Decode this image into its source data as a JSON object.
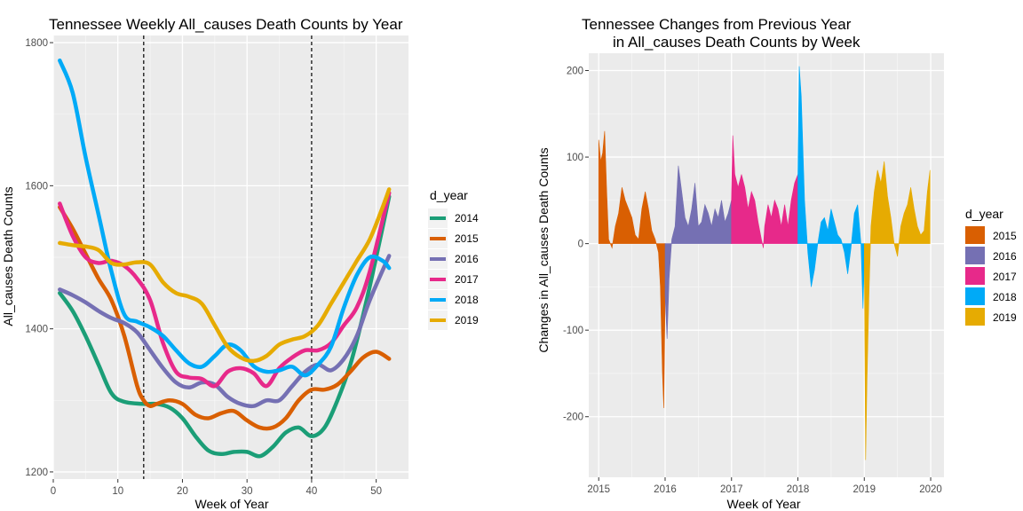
{
  "chart_data": [
    {
      "type": "line",
      "title": "Tennessee Weekly All_causes Death Counts by Year",
      "xlabel": "Week of Year",
      "ylabel": "All_causes Death Counts",
      "xlim": [
        0,
        55
      ],
      "ylim": [
        1190,
        1810
      ],
      "x_ticks": [
        0,
        10,
        20,
        30,
        40,
        50
      ],
      "y_ticks": [
        1200,
        1400,
        1600,
        1800
      ],
      "vlines": [
        14,
        40
      ],
      "grid": true,
      "legend": {
        "title": "d_year",
        "placement": "right"
      },
      "series": [
        {
          "name": "2014",
          "color": "#1B9E77",
          "x": [
            1,
            3,
            5,
            7,
            9,
            11,
            14,
            16,
            18,
            20,
            22,
            24,
            26,
            28,
            30,
            32,
            34,
            36,
            38,
            40,
            42,
            44,
            46,
            48,
            50,
            52
          ],
          "y": [
            1450,
            1425,
            1390,
            1350,
            1310,
            1298,
            1295,
            1295,
            1290,
            1275,
            1250,
            1230,
            1225,
            1228,
            1228,
            1222,
            1235,
            1255,
            1262,
            1250,
            1262,
            1300,
            1350,
            1420,
            1500,
            1585
          ]
        },
        {
          "name": "2015",
          "color": "#D95F02",
          "x": [
            1,
            3,
            5,
            7,
            9,
            11,
            13,
            14,
            15,
            16,
            18,
            20,
            22,
            24,
            26,
            28,
            30,
            32,
            34,
            36,
            38,
            40,
            42,
            44,
            46,
            48,
            50,
            52
          ],
          "y": [
            1570,
            1540,
            1505,
            1470,
            1440,
            1390,
            1320,
            1300,
            1292,
            1295,
            1300,
            1295,
            1280,
            1275,
            1282,
            1285,
            1272,
            1262,
            1262,
            1275,
            1300,
            1315,
            1315,
            1322,
            1340,
            1360,
            1368,
            1358
          ]
        },
        {
          "name": "2016",
          "color": "#7570B3",
          "x": [
            1,
            3,
            5,
            7,
            9,
            11,
            13,
            15,
            17,
            19,
            21,
            23,
            25,
            27,
            29,
            31,
            33,
            35,
            37,
            39,
            41,
            43,
            45,
            47,
            49,
            52
          ],
          "y": [
            1455,
            1447,
            1437,
            1425,
            1415,
            1408,
            1395,
            1370,
            1345,
            1325,
            1318,
            1325,
            1322,
            1305,
            1295,
            1292,
            1300,
            1300,
            1320,
            1340,
            1350,
            1342,
            1358,
            1390,
            1440,
            1502
          ]
        },
        {
          "name": "2017",
          "color": "#E7298A",
          "x": [
            1,
            3,
            5,
            7,
            9,
            11,
            13,
            15,
            17,
            19,
            21,
            23,
            25,
            27,
            29,
            31,
            33,
            35,
            37,
            39,
            41,
            43,
            45,
            47,
            49,
            52
          ],
          "y": [
            1575,
            1530,
            1500,
            1492,
            1495,
            1488,
            1470,
            1440,
            1380,
            1340,
            1332,
            1330,
            1320,
            1340,
            1345,
            1338,
            1320,
            1345,
            1360,
            1370,
            1370,
            1380,
            1405,
            1430,
            1480,
            1590
          ]
        },
        {
          "name": "2018",
          "color": "#00AAF7",
          "x": [
            1,
            3,
            5,
            7,
            9,
            11,
            13,
            15,
            17,
            19,
            21,
            23,
            25,
            27,
            29,
            31,
            33,
            35,
            37,
            39,
            41,
            43,
            45,
            47,
            49,
            51,
            52
          ],
          "y": [
            1775,
            1730,
            1640,
            1560,
            1480,
            1420,
            1410,
            1402,
            1390,
            1370,
            1352,
            1347,
            1362,
            1378,
            1370,
            1348,
            1340,
            1342,
            1347,
            1335,
            1350,
            1375,
            1430,
            1475,
            1500,
            1495,
            1485
          ]
        },
        {
          "name": "2019",
          "color": "#E6AB02",
          "x": [
            1,
            3,
            5,
            7,
            9,
            11,
            13,
            15,
            17,
            19,
            21,
            23,
            25,
            27,
            29,
            31,
            33,
            35,
            37,
            39,
            41,
            43,
            45,
            47,
            49,
            51,
            52
          ],
          "y": [
            1520,
            1517,
            1515,
            1510,
            1492,
            1490,
            1493,
            1490,
            1465,
            1450,
            1445,
            1435,
            1405,
            1375,
            1360,
            1355,
            1362,
            1378,
            1385,
            1390,
            1405,
            1435,
            1465,
            1495,
            1525,
            1570,
            1595
          ]
        }
      ]
    },
    {
      "type": "area",
      "title": "Tennessee Changes from Previous Year",
      "subtitle": "in All_causes Death Counts by Week",
      "xlabel": "Week of Year",
      "ylabel": "Changes in All_causes Death Counts",
      "xlim": [
        2014.85,
        2020.2
      ],
      "ylim": [
        -270,
        220
      ],
      "x_ticks": [
        2015,
        2016,
        2017,
        2018,
        2019,
        2020
      ],
      "y_ticks": [
        -200,
        -100,
        0,
        100,
        200
      ],
      "grid": true,
      "legend": {
        "title": "d_year",
        "placement": "right"
      },
      "series": [
        {
          "name": "2015",
          "color": "#D95F02",
          "x": [
            2015.0,
            2015.03,
            2015.06,
            2015.09,
            2015.12,
            2015.15,
            2015.2,
            2015.25,
            2015.3,
            2015.35,
            2015.4,
            2015.45,
            2015.5,
            2015.55,
            2015.6,
            2015.65,
            2015.7,
            2015.75,
            2015.8,
            2015.85,
            2015.9,
            2015.93,
            2015.96,
            2015.98,
            2016.0
          ],
          "y": [
            120,
            95,
            105,
            130,
            60,
            5,
            -5,
            20,
            35,
            65,
            50,
            40,
            30,
            10,
            5,
            40,
            60,
            40,
            15,
            5,
            -10,
            -50,
            -150,
            -190,
            -60
          ]
        },
        {
          "name": "2016",
          "color": "#7570B3",
          "x": [
            2016.0,
            2016.03,
            2016.06,
            2016.1,
            2016.15,
            2016.2,
            2016.25,
            2016.3,
            2016.35,
            2016.4,
            2016.45,
            2016.5,
            2016.55,
            2016.6,
            2016.65,
            2016.7,
            2016.75,
            2016.8,
            2016.85,
            2016.9,
            2016.95,
            2017.0
          ],
          "y": [
            -60,
            -110,
            -40,
            5,
            20,
            90,
            60,
            30,
            20,
            40,
            70,
            20,
            25,
            45,
            35,
            20,
            40,
            30,
            50,
            25,
            35,
            50
          ]
        },
        {
          "name": "2017",
          "color": "#E7298A",
          "x": [
            2017.0,
            2017.02,
            2017.05,
            2017.1,
            2017.15,
            2017.2,
            2017.25,
            2017.3,
            2017.35,
            2017.4,
            2017.45,
            2017.48,
            2017.5,
            2017.55,
            2017.6,
            2017.65,
            2017.7,
            2017.75,
            2017.8,
            2017.85,
            2017.9,
            2017.95,
            2018.0
          ],
          "y": [
            50,
            125,
            80,
            65,
            80,
            65,
            40,
            60,
            50,
            25,
            5,
            -5,
            20,
            45,
            30,
            50,
            40,
            20,
            45,
            20,
            50,
            70,
            80
          ]
        },
        {
          "name": "2018",
          "color": "#00AAF7",
          "x": [
            2018.0,
            2018.02,
            2018.05,
            2018.1,
            2018.15,
            2018.2,
            2018.25,
            2018.3,
            2018.35,
            2018.4,
            2018.45,
            2018.5,
            2018.55,
            2018.6,
            2018.65,
            2018.7,
            2018.75,
            2018.8,
            2018.85,
            2018.9,
            2018.95,
            2018.98,
            2019.0
          ],
          "y": [
            80,
            205,
            170,
            50,
            -10,
            -50,
            -30,
            0,
            25,
            30,
            15,
            40,
            25,
            10,
            5,
            -10,
            -35,
            -5,
            35,
            45,
            0,
            -75,
            -20
          ]
        },
        {
          "name": "2019",
          "color": "#E6AB02",
          "x": [
            2019.0,
            2019.02,
            2019.04,
            2019.07,
            2019.1,
            2019.15,
            2019.2,
            2019.25,
            2019.3,
            2019.35,
            2019.4,
            2019.45,
            2019.5,
            2019.55,
            2019.6,
            2019.65,
            2019.7,
            2019.75,
            2019.8,
            2019.85,
            2019.9,
            2019.95,
            2019.99
          ],
          "y": [
            -20,
            -250,
            -160,
            -60,
            20,
            60,
            85,
            70,
            95,
            55,
            30,
            0,
            -15,
            20,
            35,
            45,
            65,
            40,
            20,
            10,
            15,
            60,
            85
          ]
        }
      ]
    }
  ]
}
